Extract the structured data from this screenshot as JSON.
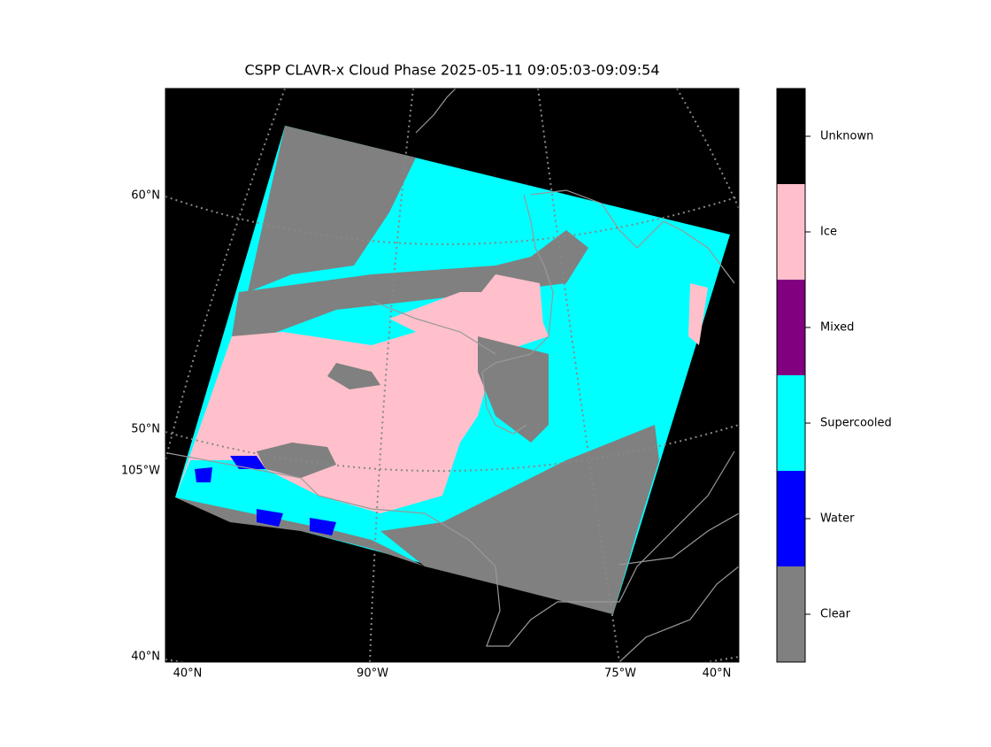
{
  "title": "CSPP CLAVR-x Cloud Phase 2025-05-11 09:05:03-09:09:54",
  "map": {
    "left_labels": [
      "60°N",
      "50°N",
      "105°W",
      "40°N"
    ],
    "bottom_labels": [
      "40°N",
      "90°W",
      "75°W",
      "40°N"
    ]
  },
  "colorbar": {
    "categories": [
      {
        "label": "Unknown",
        "color": "#000000"
      },
      {
        "label": "Ice",
        "color": "#ffc0cb"
      },
      {
        "label": "Mixed",
        "color": "#800080"
      },
      {
        "label": "Supercooled",
        "color": "#00ffff"
      },
      {
        "label": "Water",
        "color": "#0000ff"
      },
      {
        "label": "Clear",
        "color": "#808080"
      }
    ]
  }
}
